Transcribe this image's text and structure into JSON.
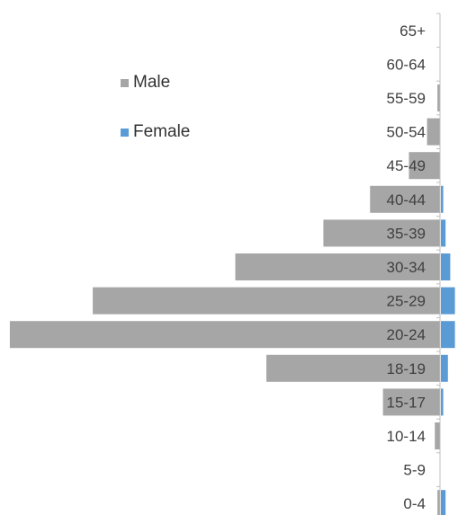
{
  "chart_data": {
    "type": "bar",
    "orientation": "horizontal",
    "layout": "population-pyramid",
    "title": "",
    "xlabel": "",
    "ylabel": "",
    "categories": [
      "65+",
      "60-64",
      "55-59",
      "50-54",
      "45-49",
      "40-44",
      "35-39",
      "30-34",
      "25-29",
      "20-24",
      "18-19",
      "15-17",
      "10-14",
      "5-9",
      "0-4"
    ],
    "series": [
      {
        "name": "Male",
        "color": "#a6a6a6",
        "values": [
          0,
          0,
          1,
          5,
          12,
          27,
          45,
          79,
          134,
          166,
          67,
          22,
          2,
          0,
          1
        ],
        "side": "left"
      },
      {
        "name": "Female",
        "color": "#5b9bd5",
        "values": [
          0,
          0,
          0,
          0,
          0,
          1,
          2,
          4,
          6,
          6,
          3,
          1,
          0,
          0,
          2
        ],
        "side": "right"
      }
    ],
    "legend": {
      "position": "top-left",
      "items": [
        "Male",
        "Female"
      ]
    },
    "grid": false
  }
}
